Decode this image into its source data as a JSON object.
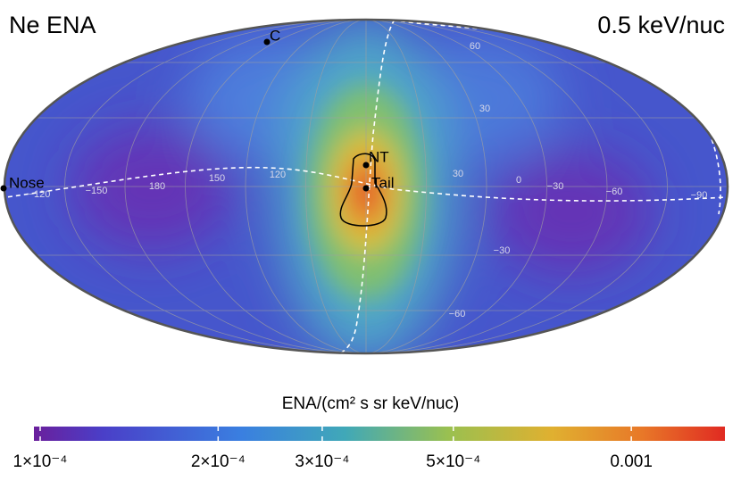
{
  "title": "Ne ENA",
  "energy": "0.5 keV/nuc",
  "points": [
    {
      "label": "C"
    },
    {
      "label": "Nose"
    },
    {
      "label": "NT"
    },
    {
      "label": "Tail"
    }
  ],
  "grid_labels": [
    "60",
    "30",
    "30",
    "0",
    "−30",
    "−60",
    "−90",
    "−30",
    "−60",
    "120",
    "150",
    "180",
    "−150",
    "−120"
  ],
  "colorbar": {
    "label": "ENA/(cm² s sr keV/nuc)",
    "log": true,
    "lim": [
      9.76e-05,
      0.00144
    ],
    "ticks": [
      {
        "value": 0.0001,
        "label": "1×10⁻⁴"
      },
      {
        "value": 0.0002,
        "label": "2×10⁻⁴"
      },
      {
        "value": 0.0003,
        "label": "3×10⁻⁴"
      },
      {
        "value": 0.0005,
        "label": "5×10⁻⁴"
      },
      {
        "value": 0.001,
        "label": "0.001"
      }
    ]
  }
}
